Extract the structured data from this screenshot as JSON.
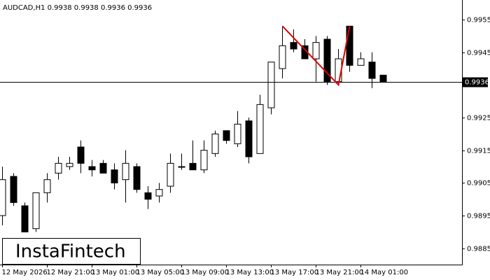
{
  "chart_data": {
    "type": "candlestick",
    "title": "AUDCAD,H1  0.9938 0.9938 0.9936 0.9936",
    "categories": [
      "12 May 2026",
      null,
      null,
      null,
      "12 May 21:00",
      null,
      null,
      null,
      "13 May 01:00",
      null,
      null,
      null,
      "13 May 05:00",
      null,
      null,
      null,
      "13 May 09:00",
      null,
      null,
      null,
      "13 May 13:00",
      null,
      null,
      null,
      "13 May 17:00",
      null,
      null,
      null,
      "13 May 21:00",
      null,
      null,
      null,
      "14 May 01:00",
      null,
      null
    ],
    "open": [
      0.9895,
      0.9907,
      0.9898,
      0.9891,
      0.9902,
      0.9908,
      0.991,
      0.9916,
      0.991,
      0.9911,
      0.9909,
      0.9906,
      0.991,
      0.9902,
      0.9901,
      0.9904,
      0.991,
      0.9911,
      0.9909,
      0.9914,
      0.9921,
      0.9917,
      0.9924,
      0.9914,
      0.9928,
      0.994,
      0.9948,
      0.9947,
      0.9943,
      0.9949,
      0.9936,
      0.9953,
      0.9941,
      0.9942,
      0.9938
    ],
    "high": [
      0.991,
      0.9908,
      0.9899,
      0.9902,
      0.9908,
      0.9913,
      0.9913,
      0.9918,
      0.9912,
      0.9912,
      0.9911,
      0.9915,
      0.9911,
      0.9904,
      0.9905,
      0.9914,
      0.9914,
      0.9918,
      0.9918,
      0.9921,
      0.9921,
      0.9927,
      0.9925,
      0.9932,
      0.9942,
      0.9953,
      0.9952,
      0.9949,
      0.995,
      0.995,
      0.9946,
      0.9953,
      0.9945,
      0.9945,
      0.9938
    ],
    "low": [
      0.9892,
      0.9898,
      0.989,
      0.989,
      0.9899,
      0.9906,
      0.9909,
      0.9908,
      0.9907,
      0.9908,
      0.9903,
      0.9899,
      0.9902,
      0.9897,
      0.9899,
      0.9902,
      0.9909,
      0.9909,
      0.9908,
      0.9913,
      0.9917,
      0.9916,
      0.9911,
      0.9914,
      0.9926,
      0.9937,
      0.9945,
      0.9943,
      0.9936,
      0.9935,
      0.9936,
      0.9939,
      0.9941,
      0.9934,
      0.9936
    ],
    "close": [
      0.9906,
      0.9899,
      0.989,
      0.9902,
      0.9906,
      0.9911,
      0.9911,
      0.9911,
      0.9909,
      0.9908,
      0.9905,
      0.9911,
      0.9903,
      0.99,
      0.9903,
      0.9911,
      0.991,
      0.9909,
      0.9915,
      0.992,
      0.9918,
      0.9923,
      0.9913,
      0.9929,
      0.9942,
      0.9947,
      0.9946,
      0.9943,
      0.9948,
      0.9936,
      0.9943,
      0.9941,
      0.9943,
      0.9937,
      0.9936
    ],
    "up_color": "#ffffff",
    "down_color": "#000000",
    "ylim": [
      0.988,
      0.9961
    ],
    "yticks": [
      0.9955,
      0.9945,
      0.9925,
      0.9915,
      0.9905,
      0.9895,
      0.9885
    ],
    "price_line": 0.9936,
    "pattern": {
      "color": "#e00000",
      "values": [
        0.9953,
        0.9935,
        0.9953
      ]
    },
    "logo": "InstaFintech"
  }
}
